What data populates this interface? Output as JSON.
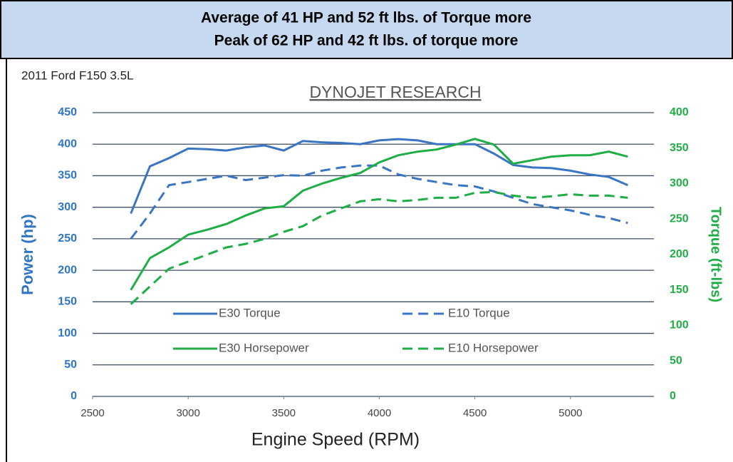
{
  "header": {
    "lines": [
      "Average of 41 HP and 52 ft lbs. of Torque more",
      "Peak of 62 HP and 42 ft lbs. of torque more"
    ]
  },
  "chart_data": {
    "type": "line",
    "title": "DYNOJET RESEARCH",
    "subtitle": "2011 Ford F150 3.5L",
    "xlabel": "Engine Speed (RPM)",
    "ylabel": "Power (hp)",
    "y2label": "Torque (ft-lbs)",
    "x": [
      2700,
      2800,
      2900,
      3000,
      3100,
      3200,
      3300,
      3400,
      3500,
      3600,
      3700,
      3800,
      3900,
      4000,
      4100,
      4200,
      4300,
      4400,
      4500,
      4600,
      4700,
      4800,
      4900,
      5000,
      5100,
      5200,
      5300
    ],
    "xlim": [
      2500,
      5500
    ],
    "xticks": [
      2500,
      3000,
      3500,
      4000,
      4500,
      5000
    ],
    "ylim": [
      0,
      450
    ],
    "yticks": [
      0,
      50,
      100,
      150,
      200,
      250,
      300,
      350,
      400,
      450
    ],
    "y2lim": [
      0,
      400
    ],
    "y2ticks": [
      0,
      50,
      100,
      150,
      200,
      250,
      300,
      350,
      400
    ],
    "grid": true,
    "legend": "center",
    "series": [
      {
        "name": "E30 Torque",
        "color": "#3a75c4",
        "style": "solid",
        "axis": "y",
        "values": [
          290,
          365,
          378,
          393,
          392,
          390,
          395,
          398,
          390,
          405,
          403,
          402,
          400,
          406,
          408,
          406,
          400,
          400,
          400,
          385,
          367,
          363,
          362,
          358,
          352,
          348,
          335
        ]
      },
      {
        "name": "E10 Torque",
        "color": "#3a75c4",
        "style": "dashed",
        "axis": "y",
        "values": [
          250,
          290,
          335,
          340,
          345,
          350,
          343,
          347,
          351,
          350,
          358,
          363,
          366,
          366,
          352,
          345,
          340,
          335,
          333,
          325,
          315,
          305,
          300,
          295,
          288,
          283,
          275
        ]
      },
      {
        "name": "E30 Horsepower",
        "color": "#1fad45",
        "style": "solid",
        "axis": "y2",
        "values": [
          150,
          195,
          210,
          228,
          235,
          243,
          255,
          265,
          268,
          290,
          300,
          308,
          315,
          330,
          340,
          345,
          348,
          355,
          363,
          355,
          328,
          333,
          338,
          340,
          340,
          345,
          338
        ]
      },
      {
        "name": "E10 Horsepower",
        "color": "#1fad45",
        "style": "dashed",
        "axis": "y2",
        "values": [
          130,
          155,
          180,
          190,
          200,
          210,
          215,
          222,
          232,
          240,
          255,
          265,
          275,
          278,
          275,
          277,
          280,
          280,
          287,
          288,
          283,
          280,
          282,
          285,
          283,
          283,
          280
        ]
      }
    ]
  }
}
